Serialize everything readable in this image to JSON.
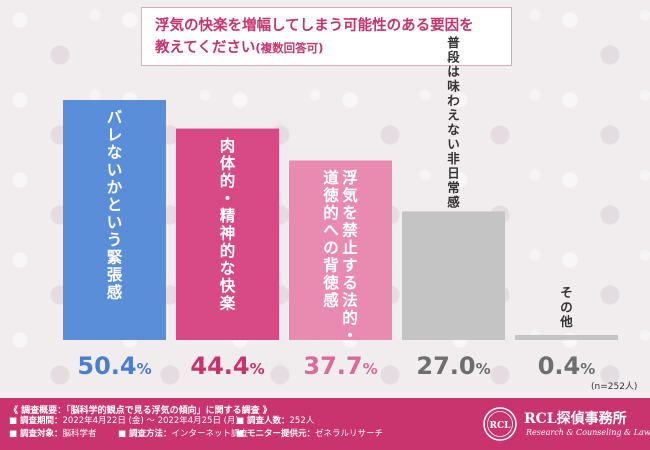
{
  "title": {
    "line1": "浮気の快楽を増幅してしまう可能性のある要因を",
    "line2": "教えてください",
    "line2_note": "(複数回答可)"
  },
  "chart_data": {
    "type": "bar",
    "categories": [
      "バレないかという緊張感",
      "肉体的・精神的な快楽",
      "浮気を禁止する法的・道徳的への背徳感",
      "普段は味わえない非日常感",
      "その他"
    ],
    "label_lines": [
      [
        "バレないかという緊張感"
      ],
      [
        "肉体的・精神的な快楽"
      ],
      [
        "浮気を禁止する法的・",
        "道徳的への背徳感"
      ],
      [
        "普段は味わえない非日常感"
      ],
      [
        "その他"
      ]
    ],
    "values": [
      50.4,
      44.4,
      37.7,
      27.0,
      0.4
    ],
    "value_labels": [
      "50.4",
      "44.4",
      "37.7",
      "27.0",
      "0.4"
    ],
    "unit": "%",
    "colors": [
      "#5b8ed8",
      "#d84a85",
      "#e98bb1",
      "#c4c4c4",
      "#c4c4c4"
    ],
    "value_colors": [
      "#4a7fcf",
      "#c8336e",
      "#d96a99",
      "#6e6e6e",
      "#6e6e6e"
    ],
    "ylim": [
      0,
      50.4
    ],
    "grid": false
  },
  "sample_size": "(n=252人)",
  "footer": {
    "survey_title": "《 調査概要：「脳科学的観点で見る浮気の傾向」に関する調査 》",
    "items": [
      {
        "key": "■ 調査期間：",
        "value": "2022年4月22日 (金) ～ 2022年4月25日 (月)"
      },
      {
        "key": "■ 調査人数：",
        "value": "252人"
      },
      {
        "key": "■ 調査対象：",
        "value": "脳科学者"
      },
      {
        "key": "■ 調査方法：",
        "value": "インターネット調査"
      },
      {
        "key": "■ モニター提供元：",
        "value": "ゼネラルリサーチ"
      }
    ],
    "brand_name": "RCL探偵事務所",
    "brand_sub": "Research & Counseling & Law",
    "logo_letters": "RCL"
  }
}
